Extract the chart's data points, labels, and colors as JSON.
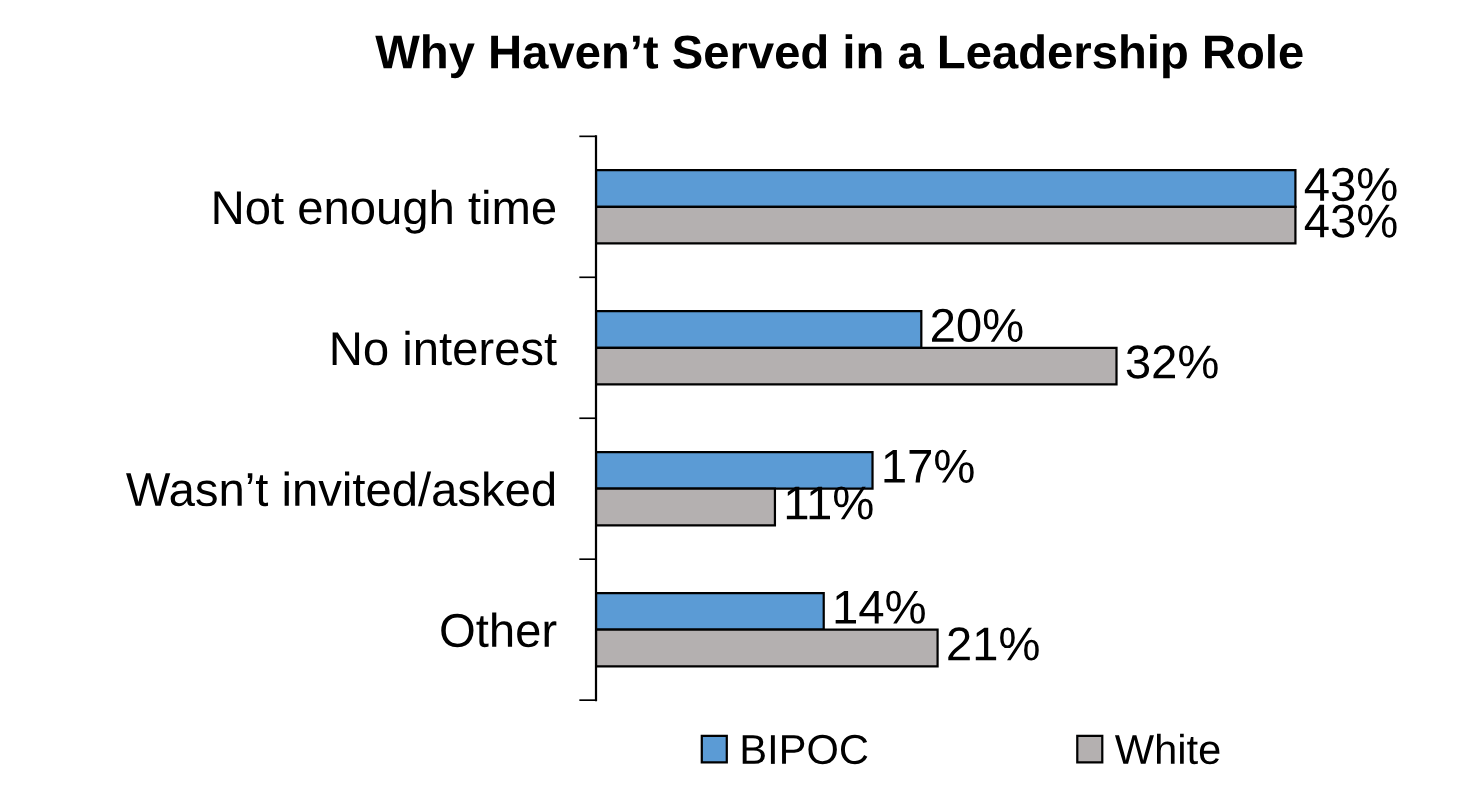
{
  "chart_data": {
    "type": "bar",
    "orientation": "horizontal",
    "title": "Why Haven’t Served in a Leadership Role",
    "categories": [
      "Not enough time",
      "No interest",
      "Wasn’t invited/asked",
      "Other"
    ],
    "series": [
      {
        "name": "BIPOC",
        "color": "#5b9bd5",
        "values": [
          43,
          20,
          17,
          14
        ],
        "value_labels": [
          "43%",
          "20%",
          "17%",
          "14%"
        ]
      },
      {
        "name": "White",
        "color": "#b4b0b0",
        "values": [
          43,
          32,
          11,
          21
        ],
        "value_labels": [
          "43%",
          "32%",
          "11%",
          "21%"
        ]
      }
    ],
    "legend": "bottom",
    "grid": false
  }
}
